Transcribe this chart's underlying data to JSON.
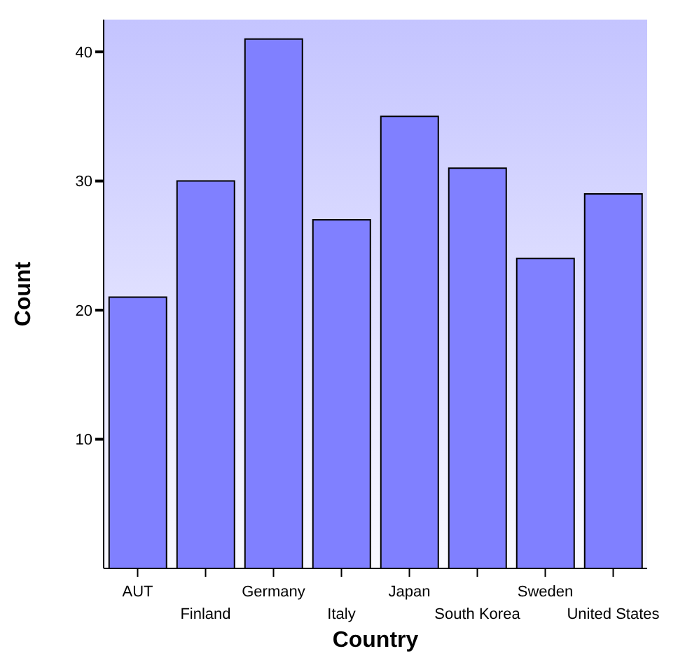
{
  "chart_data": {
    "type": "bar",
    "xlabel": "Country",
    "ylabel": "Count",
    "categories": [
      "AUT",
      "Finland",
      "Germany",
      "Italy",
      "Japan",
      "South Korea",
      "Sweden",
      "United States"
    ],
    "values": [
      21,
      30,
      41,
      27,
      35,
      31,
      24,
      29
    ],
    "color": "#8080ff",
    "ylim": [
      0,
      42.5
    ],
    "yticks": [
      10,
      20,
      30,
      40
    ]
  }
}
